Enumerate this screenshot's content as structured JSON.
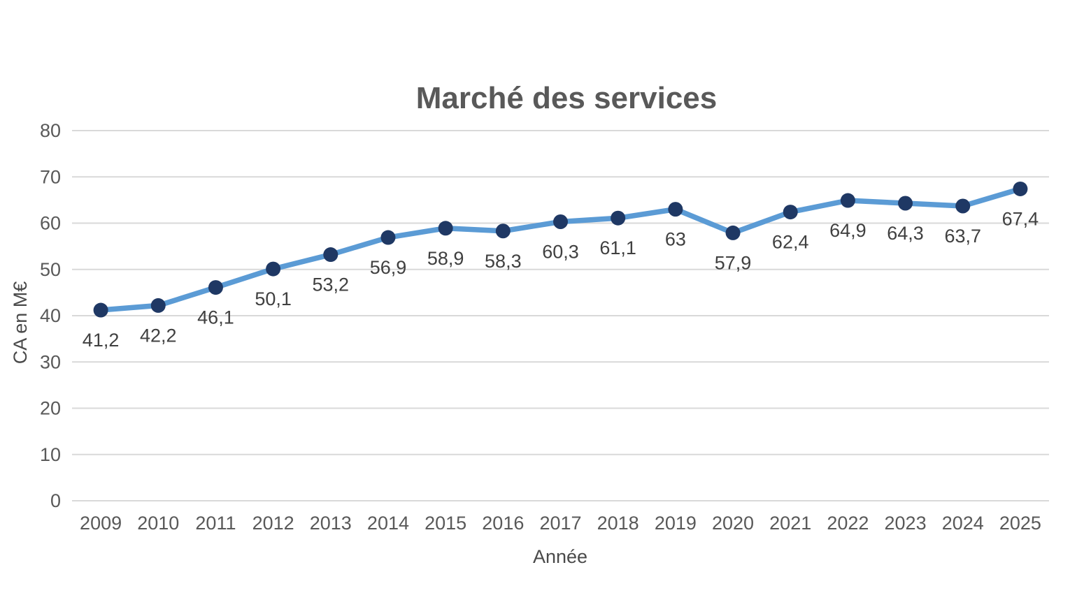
{
  "chart_data": {
    "type": "line",
    "title": "Marché des services",
    "xlabel": "Année",
    "ylabel": "CA en M€",
    "categories": [
      "2009",
      "2010",
      "2011",
      "2012",
      "2013",
      "2014",
      "2015",
      "2016",
      "2017",
      "2018",
      "2019",
      "2020",
      "2021",
      "2022",
      "2023",
      "2024",
      "2025"
    ],
    "values": [
      41.2,
      42.2,
      46.1,
      50.1,
      53.2,
      56.9,
      58.9,
      58.3,
      60.3,
      61.1,
      63,
      57.9,
      62.4,
      64.9,
      64.3,
      63.7,
      67.4
    ],
    "value_labels": [
      "41,2",
      "42,2",
      "46,1",
      "50,1",
      "53,2",
      "56,9",
      "58,9",
      "58,3",
      "60,3",
      "61,1",
      "63",
      "57,9",
      "62,4",
      "64,9",
      "64,3",
      "63,7",
      "67,4"
    ],
    "ylim": [
      0,
      80
    ],
    "ytick_step": 10,
    "grid": true,
    "legend_position": "none",
    "colors": {
      "line": "#5b9bd5",
      "marker": "#1f3864",
      "gridline": "#d9d9d9",
      "tick_text": "#595959",
      "data_label": "#404040",
      "title_text": "#595959",
      "background": "#ffffff"
    }
  }
}
